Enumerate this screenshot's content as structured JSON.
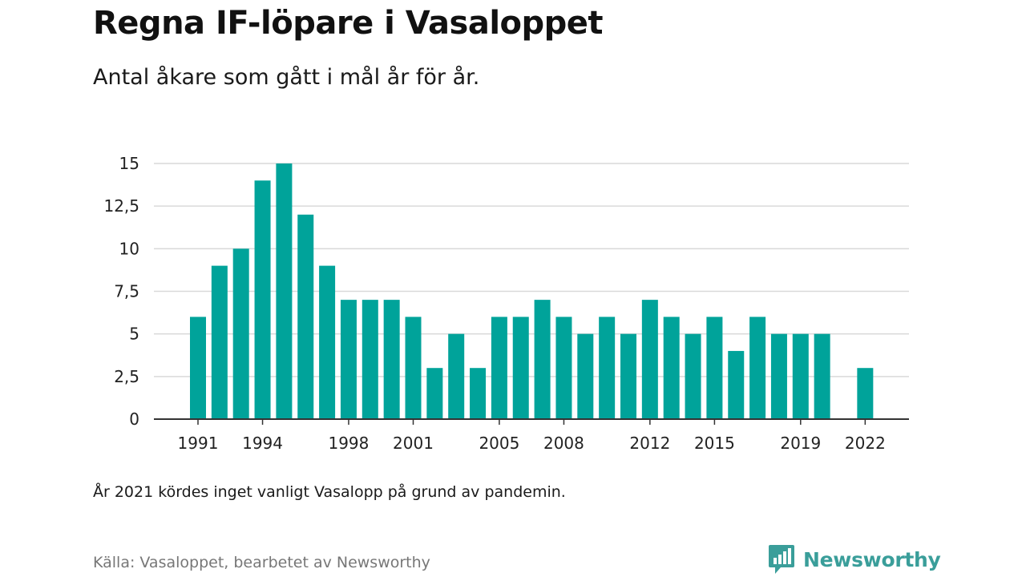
{
  "header": {
    "title": "Regna IF-löpare i Vasaloppet",
    "subtitle": "Antal åkare som gått i mål år för år."
  },
  "footer": {
    "note": "År 2021 kördes inget vanligt Vasalopp på grund av pandemin.",
    "source": "Källa: Vasaloppet, bearbetet av Newsworthy",
    "brand": "Newsworthy"
  },
  "colors": {
    "bar": "#00a39a",
    "grid": "#d9d9d9",
    "axis": "#333333",
    "brand": "#3a9e9a"
  },
  "chart_data": {
    "type": "bar",
    "categories": [
      "1991",
      "1992",
      "1993",
      "1994",
      "1995",
      "1996",
      "1997",
      "1998",
      "1999",
      "2000",
      "2001",
      "2002",
      "2003",
      "2004",
      "2005",
      "2006",
      "2007",
      "2008",
      "2009",
      "2010",
      "2011",
      "2012",
      "2013",
      "2014",
      "2015",
      "2016",
      "2017",
      "2018",
      "2019",
      "2020",
      "2021",
      "2022"
    ],
    "values": [
      6,
      9,
      10,
      14,
      15,
      12,
      9,
      7,
      7,
      7,
      6,
      3,
      5,
      3,
      6,
      6,
      7,
      6,
      5,
      6,
      5,
      7,
      6,
      5,
      6,
      4,
      6,
      5,
      5,
      5,
      null,
      3
    ],
    "x_tick_labels": [
      "1991",
      "1994",
      "1998",
      "2001",
      "2005",
      "2008",
      "2012",
      "2015",
      "2019",
      "2022"
    ],
    "y_ticks": [
      "0",
      "2,5",
      "5",
      "7,5",
      "10",
      "12,5",
      "15"
    ],
    "ylim": [
      0,
      15
    ],
    "grid": true,
    "xlabel": "",
    "ylabel": ""
  }
}
